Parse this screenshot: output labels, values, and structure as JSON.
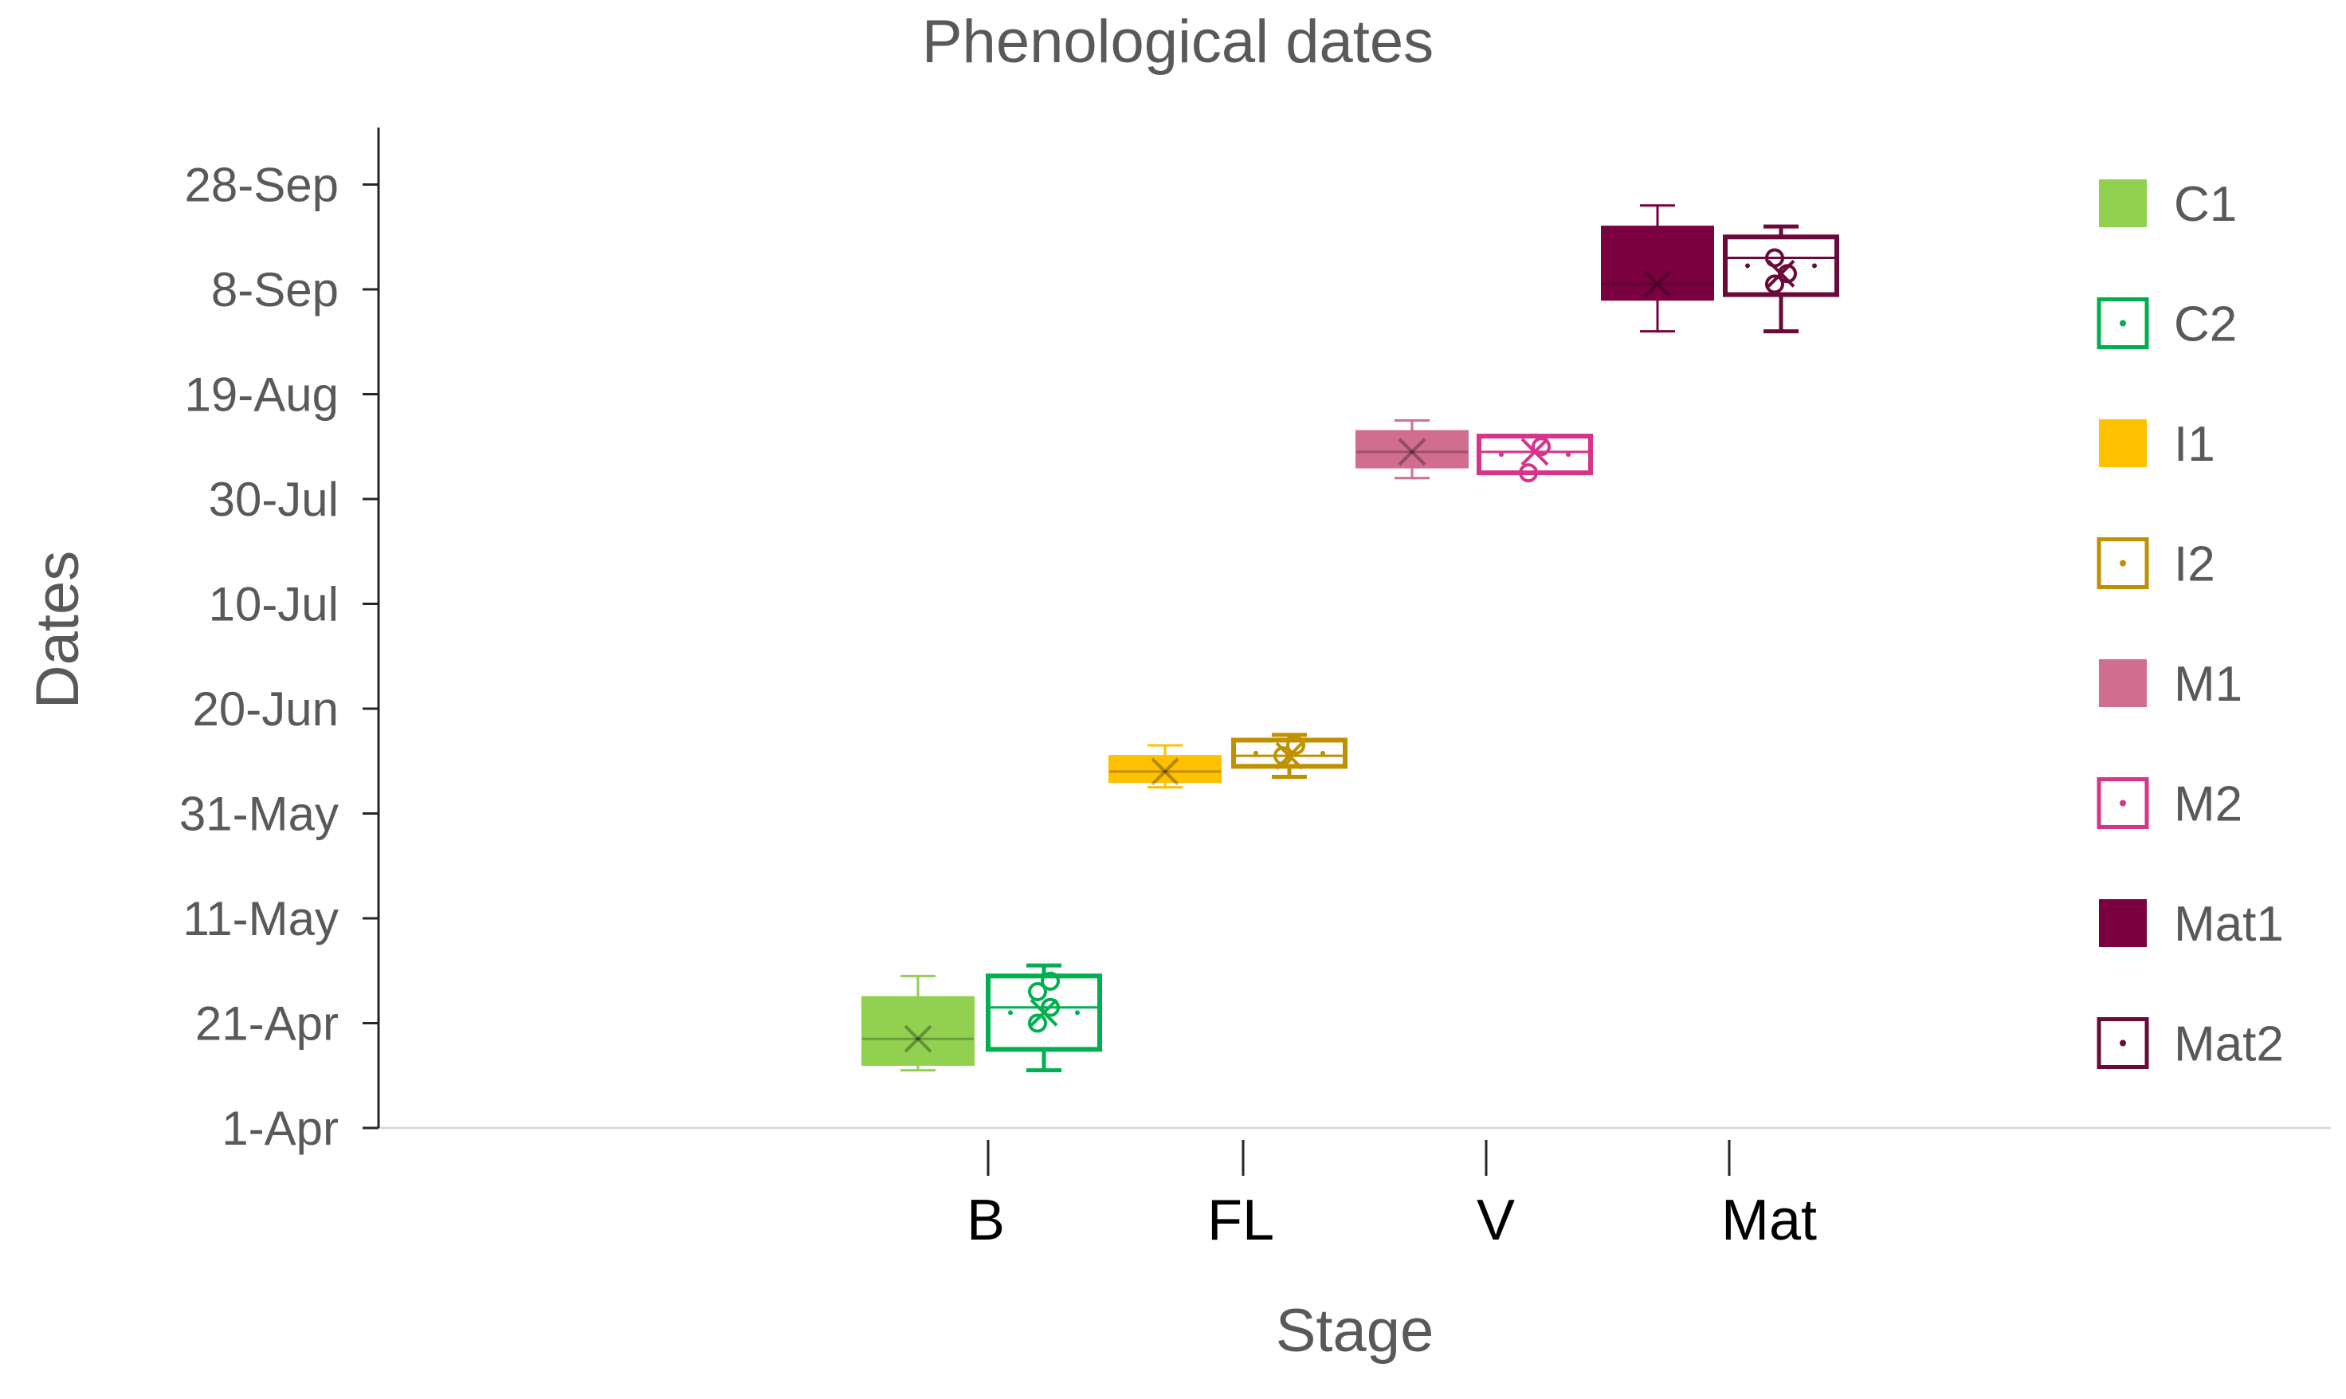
{
  "chart_data": {
    "type": "box",
    "title": "Phenological dates",
    "xlabel": "Stage",
    "ylabel": "Dates",
    "x_tick_labels": [
      "B",
      "FL",
      "V",
      "Mat"
    ],
    "y_tick_labels": [
      "1-Apr",
      "21-Apr",
      "11-May",
      "31-May",
      "20-Jun",
      "10-Jul",
      "30-Jul",
      "19-Aug",
      "8-Sep",
      "28-Sep"
    ],
    "ylim": [
      "2017-04-01",
      "2017-10-11"
    ],
    "legend_position": "right",
    "grid": false,
    "series": [
      {
        "name": "C1",
        "color": "#92D050",
        "style": "filled",
        "stage": "B",
        "whisker_low": "2017-04-12",
        "q1": "2017-04-13",
        "median": "2017-04-18",
        "mean": "2017-04-18",
        "q3": "2017-04-26",
        "whisker_high": "2017-04-30",
        "points": []
      },
      {
        "name": "C2",
        "color": "#00B050",
        "style": "outline",
        "stage": "B",
        "whisker_low": "2017-04-12",
        "q1": "2017-04-16",
        "median": "2017-04-24",
        "mean": "2017-04-23",
        "q3": "2017-04-30",
        "whisker_high": "2017-05-02",
        "points": [
          "2017-04-21",
          "2017-04-24",
          "2017-04-27",
          "2017-04-29"
        ]
      },
      {
        "name": "I1",
        "color": "#FFC000",
        "style": "filled",
        "stage": "FL",
        "whisker_low": "2017-06-05",
        "q1": "2017-06-06",
        "median": "2017-06-08",
        "mean": "2017-06-08",
        "q3": "2017-06-11",
        "whisker_high": "2017-06-13",
        "points": []
      },
      {
        "name": "I2",
        "color": "#BF9000",
        "style": "outline",
        "stage": "FL",
        "whisker_low": "2017-06-07",
        "q1": "2017-06-09",
        "median": "2017-06-11",
        "mean": "2017-06-11",
        "q3": "2017-06-14",
        "whisker_high": "2017-06-15",
        "points": [
          "2017-06-11",
          "2017-06-13"
        ]
      },
      {
        "name": "M1",
        "color": "#D16D8E",
        "style": "filled",
        "stage": "V",
        "whisker_low": "2017-08-03",
        "q1": "2017-08-05",
        "median": "2017-08-08",
        "mean": "2017-08-08",
        "q3": "2017-08-12",
        "whisker_high": "2017-08-14",
        "points": []
      },
      {
        "name": "M2",
        "color": "#D6338A",
        "style": "outline",
        "stage": "V",
        "whisker_low": "2017-08-04",
        "q1": "2017-08-04",
        "median": "2017-08-08",
        "mean": "2017-08-08",
        "q3": "2017-08-11",
        "whisker_high": "2017-08-11",
        "points": [
          "2017-08-04",
          "2017-08-09"
        ]
      },
      {
        "name": "Mat1",
        "color": "#7A0040",
        "style": "filled",
        "stage": "Mat",
        "whisker_low": "2017-08-31",
        "q1": "2017-09-06",
        "median": "2017-09-09",
        "mean": "2017-09-09",
        "q3": "2017-09-20",
        "whisker_high": "2017-09-24",
        "points": []
      },
      {
        "name": "Mat2",
        "color": "#6A0A3A",
        "style": "outline",
        "stage": "Mat",
        "whisker_low": "2017-08-31",
        "q1": "2017-09-07",
        "median": "2017-09-14",
        "mean": "2017-09-11",
        "q3": "2017-09-18",
        "whisker_high": "2017-09-20",
        "points": [
          "2017-09-09",
          "2017-09-11",
          "2017-09-14"
        ]
      }
    ]
  }
}
